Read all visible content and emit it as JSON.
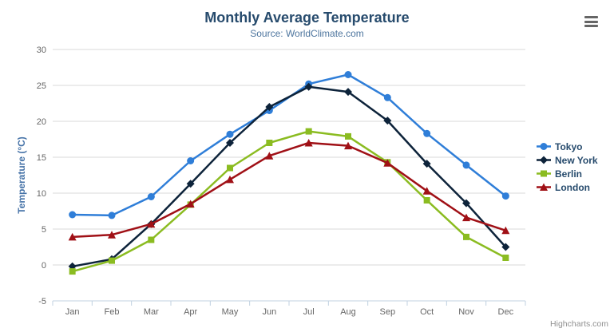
{
  "chart_data": {
    "type": "line",
    "title": "Monthly Average Temperature",
    "subtitle": "Source: WorldClimate.com",
    "xlabel": "",
    "ylabel": "Temperature (°C)",
    "ylim": [
      -5,
      30
    ],
    "ytick_step": 5,
    "grid": true,
    "legend_position": "right",
    "categories": [
      "Jan",
      "Feb",
      "Mar",
      "Apr",
      "May",
      "Jun",
      "Jul",
      "Aug",
      "Sep",
      "Oct",
      "Nov",
      "Dec"
    ],
    "series": [
      {
        "name": "Tokyo",
        "color": "#2f7ed8",
        "marker": "circle",
        "values": [
          7.0,
          6.9,
          9.5,
          14.5,
          18.2,
          21.5,
          25.2,
          26.5,
          23.3,
          18.3,
          13.9,
          9.6
        ]
      },
      {
        "name": "New York",
        "color": "#0d233a",
        "marker": "diamond",
        "values": [
          -0.2,
          0.8,
          5.7,
          11.3,
          17.0,
          22.0,
          24.8,
          24.1,
          20.1,
          14.1,
          8.6,
          2.5
        ]
      },
      {
        "name": "Berlin",
        "color": "#8bbc21",
        "marker": "square",
        "values": [
          -0.9,
          0.6,
          3.5,
          8.4,
          13.5,
          17.0,
          18.6,
          17.9,
          14.3,
          9.0,
          3.9,
          1.0
        ]
      },
      {
        "name": "London",
        "color": "#a01016",
        "marker": "triangle",
        "values": [
          3.9,
          4.2,
          5.7,
          8.5,
          11.9,
          15.2,
          17.0,
          16.6,
          14.2,
          10.3,
          6.6,
          4.8
        ]
      }
    ]
  },
  "credits": "Highcharts.com",
  "ui": {
    "menu_icon": "hamburger-icon",
    "colors": {
      "title": "#274b6d",
      "subtitle": "#4d759e",
      "axis_label": "#666666",
      "axis_title": "#4572a7",
      "grid": "#d8d8d8",
      "axis_line": "#c0d0e0",
      "legend_text": "#274b6d",
      "credits": "#909090"
    }
  }
}
